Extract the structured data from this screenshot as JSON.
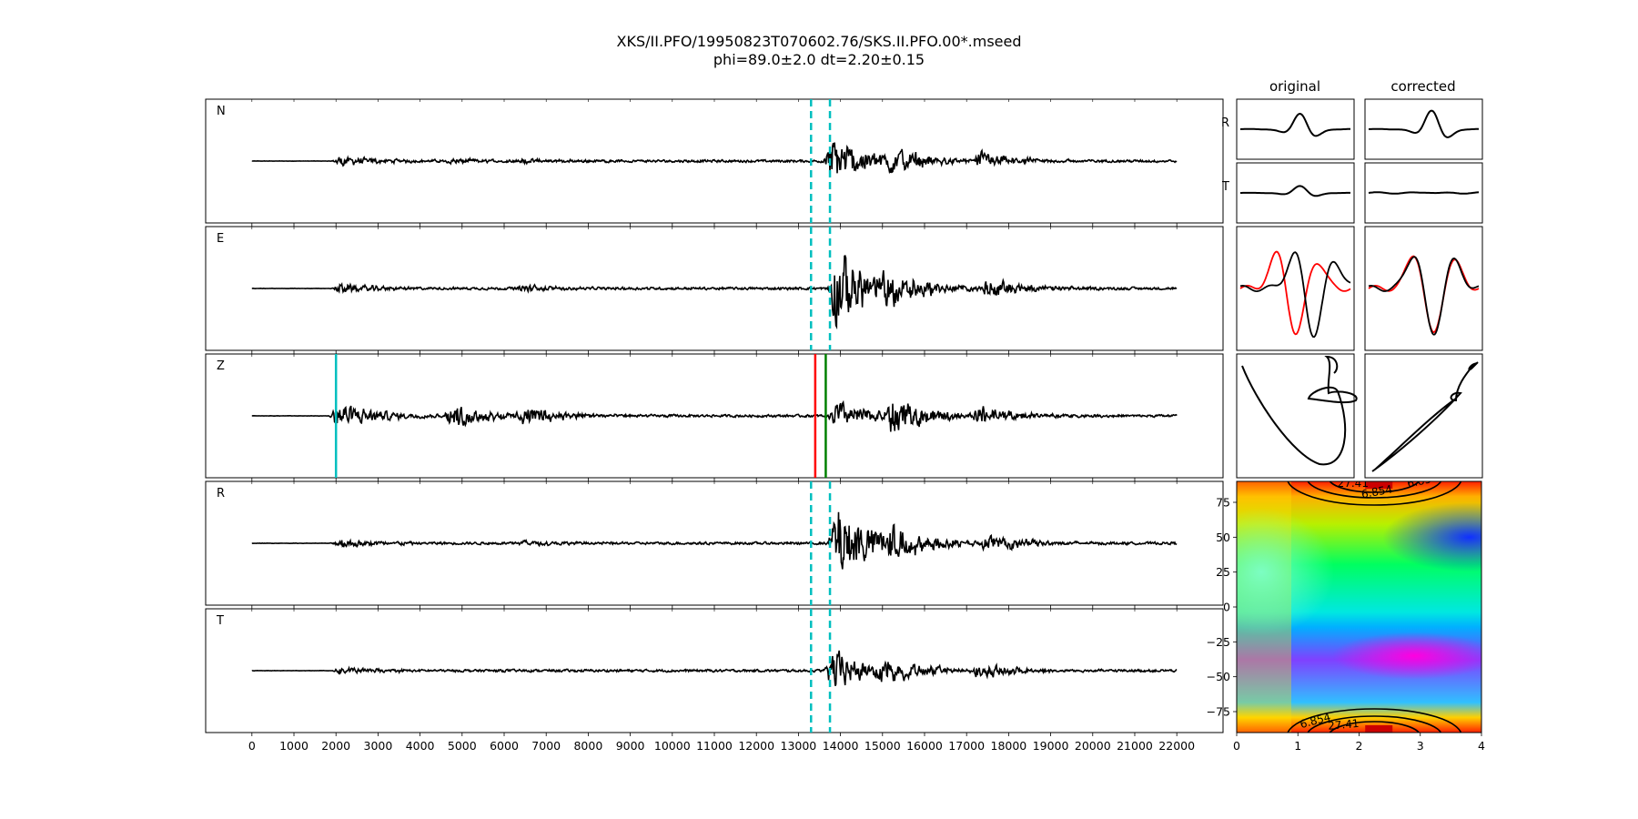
{
  "title": "XKS/II.PFO/19950823T070602.76/SKS.II.PFO.00*.mseed",
  "subtitle": "phi=89.0±2.0 dt=2.20±0.15",
  "colors": {
    "trace": "#000000",
    "window": "#00bfbf",
    "pick_red": "#ff0000",
    "pick_green": "#008000",
    "particle_red": "#ff0000"
  },
  "chart_data": [
    {
      "type": "line",
      "name": "seismograms",
      "panels": [
        {
          "label": "N",
          "events": [
            [
              2100,
              0.12
            ],
            [
              4750,
              0.06
            ],
            [
              6450,
              0.05
            ],
            [
              13800,
              0.6
            ],
            [
              15200,
              0.3
            ],
            [
              17300,
              0.2
            ]
          ]
        },
        {
          "label": "E",
          "events": [
            [
              2100,
              0.12
            ],
            [
              6450,
              0.08
            ],
            [
              13900,
              1.0
            ],
            [
              15000,
              0.45
            ],
            [
              17500,
              0.25
            ]
          ]
        },
        {
          "label": "Z",
          "events": [
            [
              2050,
              0.35
            ],
            [
              4750,
              0.3
            ],
            [
              6450,
              0.25
            ],
            [
              13900,
              0.35
            ],
            [
              15200,
              0.45
            ],
            [
              17300,
              0.25
            ]
          ]
        },
        {
          "label": "R",
          "events": [
            [
              2100,
              0.12
            ],
            [
              6450,
              0.06
            ],
            [
              13900,
              1.0
            ],
            [
              15200,
              0.4
            ],
            [
              17500,
              0.25
            ]
          ]
        },
        {
          "label": "T",
          "events": [
            [
              2100,
              0.08
            ],
            [
              13800,
              0.5
            ],
            [
              15000,
              0.3
            ],
            [
              17300,
              0.2
            ]
          ]
        }
      ],
      "x_range": [
        0,
        22000
      ],
      "xlim": [
        -1100,
        23100
      ],
      "xticks": [
        0,
        1000,
        2000,
        3000,
        4000,
        5000,
        6000,
        7000,
        8000,
        9000,
        10000,
        11000,
        12000,
        13000,
        14000,
        15000,
        16000,
        17000,
        18000,
        19000,
        20000,
        21000,
        22000
      ],
      "window": [
        13300,
        13750
      ],
      "z_picks": {
        "cyan": 2000,
        "red": 13400,
        "green": 13650
      },
      "grid": false
    },
    {
      "type": "line",
      "name": "particle-panels",
      "columns": [
        "original",
        "corrected"
      ],
      "row_labels": [
        "R",
        "T"
      ]
    },
    {
      "type": "heatmap",
      "name": "error-surface",
      "xlim": [
        0,
        4
      ],
      "ylim": [
        -90,
        90
      ],
      "xticks": [
        0,
        1,
        2,
        3,
        4
      ],
      "yticks": [
        75,
        50,
        25,
        0,
        -25,
        -50,
        -75
      ],
      "contour_labels": [
        "6.854",
        "6.854",
        "27.41",
        "6.854",
        "27.41"
      ]
    }
  ]
}
